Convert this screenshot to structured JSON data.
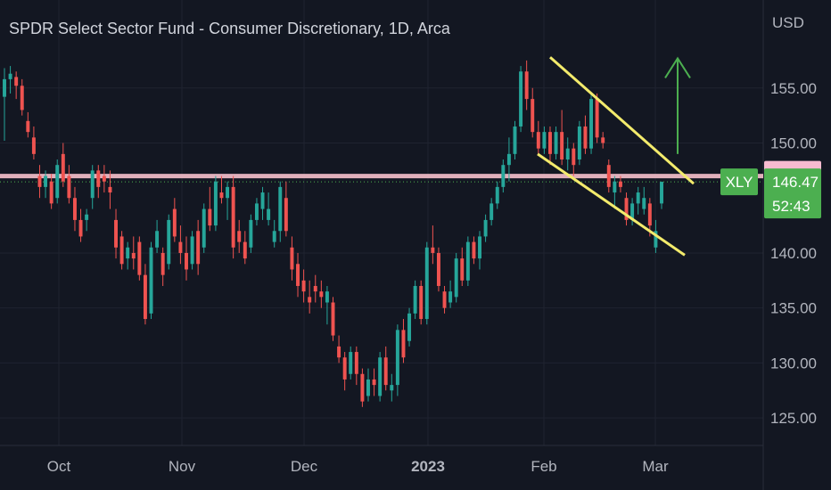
{
  "title": "SPDR Select Sector Fund - Consumer Discretionary, 1D, Arca",
  "currency": "USD",
  "colors": {
    "background": "#131722",
    "up": "#26a69a",
    "down": "#ef5350",
    "resistance": "#f7c1cc",
    "channel": "#f3eb6c",
    "arrow": "#4caf50",
    "badge_green": "#4caf50",
    "badge_pink": "#f8bbd0"
  },
  "badges": {
    "resistance_price": "146.99",
    "last_price": "146.47",
    "ticker": "XLY",
    "countdown": "52:43"
  },
  "chart_data": {
    "type": "candlestick",
    "title": "SPDR Select Sector Fund - Consumer Discretionary, 1D, Arca",
    "y_tick_labels": [
      "155.00",
      "150.00",
      "140.00",
      "135.00",
      "130.00",
      "125.00"
    ],
    "x_tick_labels": [
      "Oct",
      "Nov",
      "Dec",
      "2023",
      "Feb",
      "Mar"
    ],
    "ylim": [
      122.5,
      163
    ],
    "resistance_level": 146.99,
    "last_price": 146.47,
    "channel_upper": [
      [
        0,
        157.8
      ],
      [
        20,
        146.3
      ]
    ],
    "channel_lower": [
      [
        0,
        149.0
      ],
      [
        20,
        139.8
      ]
    ],
    "arrow": {
      "from": 149.0,
      "to": 157.7
    },
    "candles": [
      [
        154.2,
        156.8,
        150.2,
        155.8
      ],
      [
        155.8,
        157.0,
        154.5,
        156.3
      ],
      [
        156.0,
        156.5,
        154.0,
        155.2
      ],
      [
        155.2,
        155.8,
        152.5,
        153.0
      ],
      [
        152.0,
        152.8,
        150.5,
        151.0
      ],
      [
        150.5,
        151.5,
        148.5,
        149.0
      ],
      [
        147.0,
        148.0,
        145.0,
        146.0
      ],
      [
        146.0,
        147.5,
        145.0,
        147.0
      ],
      [
        146.5,
        147.2,
        144.0,
        144.5
      ],
      [
        145.0,
        148.5,
        144.5,
        148.0
      ],
      [
        149.0,
        150.0,
        146.0,
        146.5
      ],
      [
        147.0,
        148.0,
        144.5,
        145.0
      ],
      [
        145.0,
        146.0,
        142.0,
        143.0
      ],
      [
        143.0,
        144.0,
        141.0,
        141.5
      ],
      [
        143.0,
        144.0,
        142.0,
        143.5
      ],
      [
        145.0,
        148.0,
        144.0,
        147.5
      ],
      [
        147.5,
        148.0,
        145.0,
        146.0
      ],
      [
        147.0,
        148.0,
        145.5,
        146.5
      ],
      [
        146.0,
        147.5,
        144.0,
        145.5
      ],
      [
        143.0,
        144.0,
        139.5,
        140.5
      ],
      [
        141.5,
        142.0,
        138.5,
        139.0
      ],
      [
        139.5,
        141.0,
        138.5,
        140.5
      ],
      [
        140.0,
        141.5,
        138.5,
        139.5
      ],
      [
        141.0,
        141.5,
        137.5,
        138.0
      ],
      [
        138.0,
        139.0,
        133.5,
        134.0
      ],
      [
        134.5,
        141.0,
        134.0,
        140.5
      ],
      [
        140.5,
        143.0,
        140.0,
        142.0
      ],
      [
        140.0,
        140.5,
        137.0,
        138.0
      ],
      [
        139.0,
        143.5,
        138.5,
        143.0
      ],
      [
        144.0,
        145.0,
        141.0,
        141.5
      ],
      [
        141.0,
        142.5,
        139.0,
        140.0
      ],
      [
        140.0,
        141.5,
        137.5,
        138.5
      ],
      [
        139.0,
        142.0,
        138.5,
        141.5
      ],
      [
        142.0,
        143.0,
        138.0,
        139.0
      ],
      [
        140.5,
        144.5,
        140.0,
        144.0
      ],
      [
        144.0,
        146.0,
        142.0,
        142.5
      ],
      [
        142.5,
        147.0,
        142.0,
        146.5
      ],
      [
        145.5,
        147.0,
        144.5,
        145.0
      ],
      [
        145.0,
        146.5,
        143.0,
        146.0
      ],
      [
        146.0,
        147.0,
        139.5,
        140.5
      ],
      [
        142.0,
        143.0,
        140.0,
        141.0
      ],
      [
        141.0,
        142.0,
        139.0,
        139.5
      ],
      [
        140.5,
        143.5,
        140.0,
        143.0
      ],
      [
        143.0,
        145.0,
        142.5,
        144.5
      ],
      [
        144.0,
        146.0,
        143.0,
        145.5
      ],
      [
        143.0,
        145.5,
        142.5,
        144.0
      ],
      [
        141.0,
        143.0,
        140.5,
        142.0
      ],
      [
        142.0,
        146.5,
        141.0,
        146.0
      ],
      [
        145.0,
        146.5,
        141.5,
        142.0
      ],
      [
        140.5,
        141.5,
        137.5,
        138.5
      ],
      [
        139.0,
        140.0,
        136.0,
        137.0
      ],
      [
        137.5,
        138.5,
        135.5,
        136.5
      ],
      [
        136.0,
        137.5,
        134.5,
        135.5
      ],
      [
        137.0,
        138.0,
        135.5,
        136.5
      ],
      [
        136.5,
        137.5,
        135.0,
        136.0
      ],
      [
        135.5,
        137.0,
        133.5,
        136.5
      ],
      [
        135.5,
        136.0,
        132.0,
        132.5
      ],
      [
        131.5,
        132.5,
        130.0,
        130.5
      ],
      [
        130.5,
        131.0,
        127.5,
        128.5
      ],
      [
        129.0,
        131.5,
        128.5,
        131.0
      ],
      [
        131.0,
        131.5,
        128.0,
        129.0
      ],
      [
        129.0,
        129.5,
        126.0,
        126.5
      ],
      [
        127.0,
        129.5,
        126.5,
        128.5
      ],
      [
        128.5,
        129.5,
        127.0,
        128.0
      ],
      [
        127.0,
        131.0,
        126.5,
        130.5
      ],
      [
        130.5,
        131.5,
        127.5,
        128.0
      ],
      [
        127.5,
        129.0,
        126.5,
        128.0
      ],
      [
        128.0,
        133.5,
        127.0,
        133.0
      ],
      [
        133.0,
        134.0,
        130.0,
        130.5
      ],
      [
        132.0,
        135.0,
        131.5,
        134.5
      ],
      [
        134.5,
        137.5,
        134.0,
        137.0
      ],
      [
        137.0,
        137.5,
        133.5,
        134.0
      ],
      [
        134.0,
        141.0,
        133.5,
        140.5
      ],
      [
        140.5,
        142.5,
        139.0,
        140.0
      ],
      [
        140.0,
        140.5,
        136.5,
        137.0
      ],
      [
        136.5,
        137.0,
        134.5,
        135.0
      ],
      [
        135.5,
        137.5,
        135.0,
        136.5
      ],
      [
        136.0,
        140.0,
        135.5,
        139.5
      ],
      [
        139.5,
        140.5,
        137.0,
        137.5
      ],
      [
        137.5,
        141.5,
        137.0,
        141.0
      ],
      [
        141.0,
        141.5,
        139.0,
        139.5
      ],
      [
        139.5,
        142.0,
        138.5,
        141.5
      ],
      [
        141.5,
        143.5,
        141.0,
        143.0
      ],
      [
        143.0,
        145.0,
        142.5,
        144.5
      ],
      [
        144.5,
        146.5,
        144.0,
        146.0
      ],
      [
        146.0,
        148.5,
        145.5,
        148.0
      ],
      [
        148.0,
        150.5,
        146.5,
        149.0
      ],
      [
        149.0,
        152.0,
        148.5,
        151.5
      ],
      [
        151.5,
        157.0,
        151.0,
        156.5
      ],
      [
        156.5,
        157.5,
        153.0,
        154.0
      ],
      [
        154.0,
        155.0,
        150.5,
        151.0
      ],
      [
        151.0,
        152.0,
        149.0,
        149.5
      ],
      [
        149.5,
        151.5,
        149.0,
        151.0
      ],
      [
        151.0,
        151.5,
        148.0,
        149.0
      ],
      [
        149.0,
        151.5,
        148.5,
        151.0
      ],
      [
        151.0,
        153.0,
        148.0,
        148.5
      ],
      [
        148.5,
        150.5,
        147.5,
        149.5
      ],
      [
        149.5,
        150.0,
        147.0,
        148.0
      ],
      [
        148.5,
        152.0,
        148.0,
        151.5
      ],
      [
        151.5,
        152.5,
        149.0,
        149.5
      ],
      [
        149.5,
        154.5,
        149.0,
        154.0
      ],
      [
        154.0,
        154.5,
        150.0,
        150.5
      ],
      [
        150.5,
        151.0,
        149.5,
        150.0
      ],
      [
        148.0,
        148.5,
        145.5,
        146.0
      ],
      [
        145.5,
        147.0,
        144.0,
        146.5
      ],
      [
        146.5,
        147.0,
        145.5,
        146.0
      ],
      [
        145.0,
        145.5,
        142.5,
        143.0
      ],
      [
        143.0,
        145.0,
        142.5,
        144.5
      ],
      [
        144.5,
        146.0,
        143.5,
        145.5
      ],
      [
        144.0,
        146.0,
        143.5,
        145.0
      ],
      [
        144.5,
        145.0,
        141.5,
        142.5
      ],
      [
        140.5,
        143.0,
        140.0,
        142.0
      ],
      [
        144.5,
        146.5,
        144.0,
        146.47
      ]
    ]
  }
}
